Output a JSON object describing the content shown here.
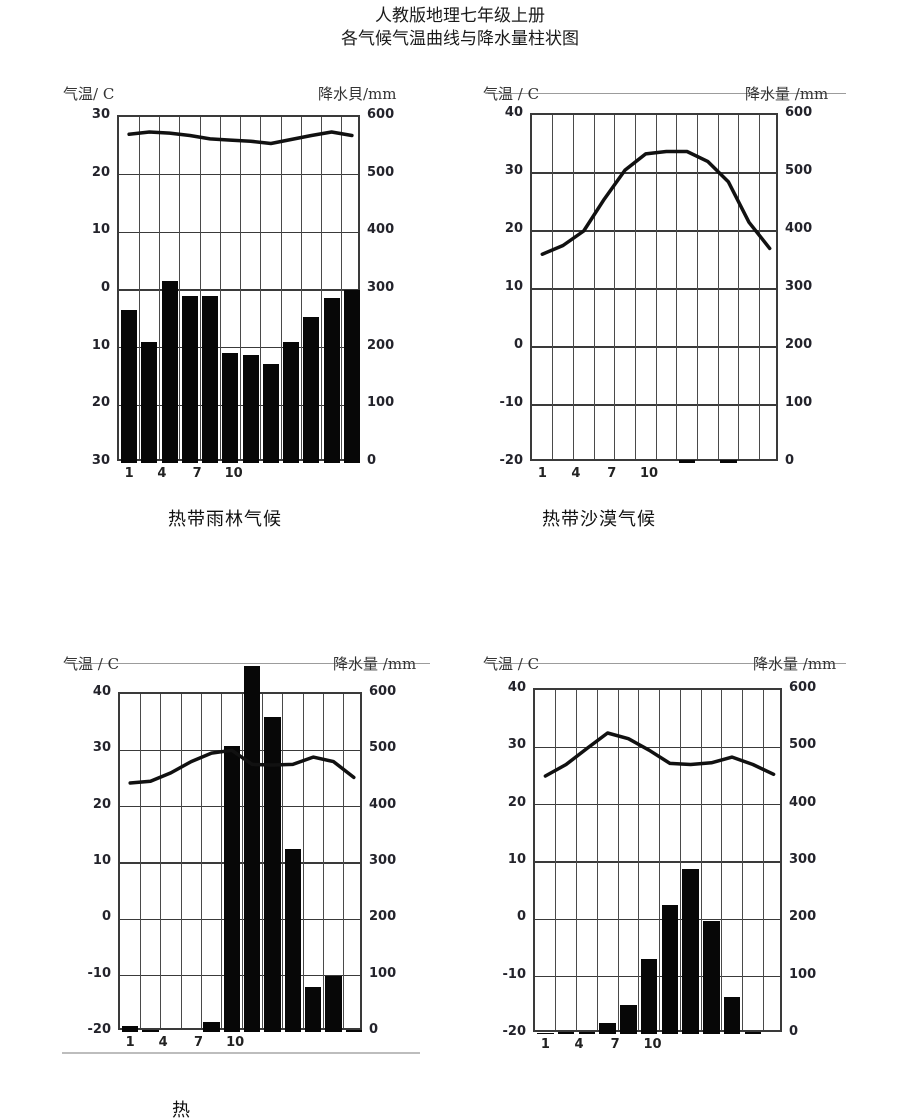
{
  "page": {
    "title": "人教版地理七年级上册",
    "subtitle": "各气候气温曲线与降水量柱状图"
  },
  "chart_data": [
    {
      "id": "tropical-rainforest",
      "type": "bar",
      "subtype": "climograph-line-plus-bar",
      "caption": "热带雨林气候",
      "temp_axis_label": "气温/ C",
      "precip_axis_label": "降水貝/mm",
      "temp_ticks": [
        "30",
        "20",
        "10",
        "0",
        "10",
        "20",
        "30"
      ],
      "temp_range": [
        -30,
        30
      ],
      "precip_ticks": [
        "600",
        "500",
        "400",
        "300",
        "200",
        "100",
        "0"
      ],
      "precip_range": [
        0,
        600
      ],
      "x_tick_labels": [
        "1",
        "4",
        "7",
        "10"
      ],
      "categories": [
        "1",
        "2",
        "3",
        "4",
        "5",
        "6",
        "7",
        "8",
        "9",
        "10",
        "11",
        "12"
      ],
      "series": [
        {
          "name": "气温(°C)",
          "kind": "line",
          "values": [
            27,
            27.4,
            27.2,
            26.8,
            26.2,
            26,
            25.8,
            25.4,
            26.1,
            26.8,
            27.4,
            26.8
          ]
        },
        {
          "name": "降水量(mm)",
          "kind": "bar",
          "values": [
            265,
            210,
            315,
            290,
            290,
            190,
            188,
            172,
            210,
            253,
            286,
            300
          ]
        }
      ],
      "grid": true,
      "legend": "none"
    },
    {
      "id": "tropical-desert",
      "type": "bar",
      "subtype": "climograph-line-plus-bar",
      "caption": "热带沙漠气候",
      "temp_axis_label": "气温 / C",
      "precip_axis_label": "降水量 /mm",
      "temp_ticks": [
        "40",
        "30",
        "20",
        "10",
        "0",
        "-10",
        "-20"
      ],
      "temp_range": [
        -20,
        40
      ],
      "precip_ticks": [
        "600",
        "500",
        "400",
        "300",
        "200",
        "100",
        "0"
      ],
      "precip_range": [
        0,
        600
      ],
      "x_tick_labels": [
        "1",
        "4",
        "7",
        "10"
      ],
      "categories": [
        "1",
        "2",
        "3",
        "4",
        "5",
        "6",
        "7",
        "8",
        "9",
        "10",
        "11",
        "12"
      ],
      "series": [
        {
          "name": "气温(°C)",
          "kind": "line",
          "values": [
            16,
            17.5,
            20,
            25.5,
            30.5,
            33.3,
            33.7,
            33.7,
            32,
            28.5,
            21.5,
            17
          ]
        },
        {
          "name": "降水量(mm)",
          "kind": "bar",
          "values": [
            0,
            0,
            0,
            0,
            0,
            0,
            0,
            5,
            0,
            5,
            0,
            0
          ]
        }
      ],
      "grid": true,
      "legend": "none"
    },
    {
      "id": "tropical-monsoon",
      "type": "bar",
      "subtype": "climograph-line-plus-bar",
      "caption": "热",
      "temp_axis_label": "气温 / C",
      "precip_axis_label": "降水量 /mm",
      "temp_ticks": [
        "40",
        "30",
        "20",
        "10",
        "0",
        "-10",
        "-20"
      ],
      "temp_range": [
        -20,
        40
      ],
      "precip_ticks": [
        "600",
        "500",
        "400",
        "300",
        "200",
        "100",
        "0"
      ],
      "precip_range": [
        0,
        600
      ],
      "x_tick_labels": [
        "1",
        "4",
        "7",
        "10"
      ],
      "categories": [
        "1",
        "2",
        "3",
        "4",
        "5",
        "6",
        "7",
        "8",
        "9",
        "10",
        "11",
        "12"
      ],
      "series": [
        {
          "name": "气温(°C)",
          "kind": "line",
          "values": [
            24.2,
            24.5,
            26,
            28,
            29.5,
            30,
            27.5,
            27.4,
            27.5,
            28.8,
            28,
            25.2
          ]
        },
        {
          "name": "降水量(mm)",
          "kind": "bar",
          "values": [
            10,
            4,
            0,
            0,
            18,
            508,
            650,
            560,
            325,
            80,
            100,
            4
          ]
        }
      ],
      "grid": true,
      "legend": "none"
    },
    {
      "id": "tropical-savanna",
      "type": "bar",
      "subtype": "climograph-line-plus-bar",
      "caption": "",
      "temp_axis_label": "气温 / C",
      "precip_axis_label": "降水量 /mm",
      "temp_ticks": [
        "40",
        "30",
        "20",
        "10",
        "0",
        "-10",
        "-20"
      ],
      "temp_range": [
        -20,
        40
      ],
      "precip_ticks": [
        "600",
        "500",
        "400",
        "300",
        "200",
        "100",
        "0"
      ],
      "precip_range": [
        0,
        600
      ],
      "x_tick_labels": [
        "1",
        "4",
        "7",
        "10"
      ],
      "categories": [
        "1",
        "2",
        "3",
        "4",
        "5",
        "6",
        "7",
        "8",
        "9",
        "10",
        "11",
        "12"
      ],
      "series": [
        {
          "name": "气温(°C)",
          "kind": "line",
          "values": [
            25,
            27,
            29.8,
            32.5,
            31.5,
            29.5,
            27.2,
            27,
            27.3,
            28.3,
            27,
            25.3
          ]
        },
        {
          "name": "降水量(mm)",
          "kind": "bar",
          "values": [
            2,
            3,
            3,
            20,
            50,
            130,
            225,
            288,
            197,
            65,
            3,
            0
          ]
        }
      ],
      "grid": true,
      "legend": "none"
    }
  ]
}
